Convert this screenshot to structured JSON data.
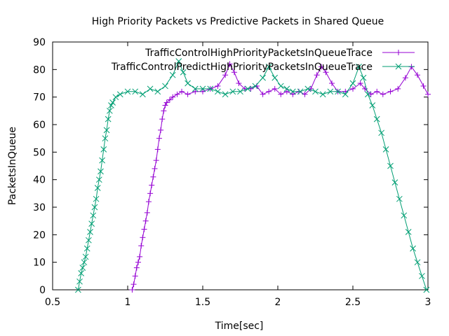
{
  "chart_data": {
    "type": "line",
    "title": "High Priority Packets vs Predictive Packets in Shared Queue",
    "xlabel": "Time[sec]",
    "ylabel": "PacketsInQueue",
    "xlim": [
      0.5,
      3
    ],
    "ylim": [
      0,
      90
    ],
    "xticks": [
      "0.5",
      "1",
      "1.5",
      "2",
      "2.5",
      "3"
    ],
    "yticks": [
      "0",
      "10",
      "20",
      "30",
      "40",
      "50",
      "60",
      "70",
      "80",
      "90"
    ],
    "legend_position": "top-right",
    "series": [
      {
        "name": "TrafficControlHighPriorityPacketsInQueueTrace",
        "color": "#9400D3",
        "marker": "plus",
        "points": [
          [
            1.03,
            0
          ],
          [
            1.04,
            2
          ],
          [
            1.05,
            5
          ],
          [
            1.06,
            8
          ],
          [
            1.07,
            10
          ],
          [
            1.08,
            12
          ],
          [
            1.09,
            16
          ],
          [
            1.1,
            19
          ],
          [
            1.11,
            22
          ],
          [
            1.12,
            25
          ],
          [
            1.13,
            28
          ],
          [
            1.14,
            32
          ],
          [
            1.15,
            35
          ],
          [
            1.16,
            38
          ],
          [
            1.17,
            41
          ],
          [
            1.18,
            44
          ],
          [
            1.19,
            47
          ],
          [
            1.2,
            51
          ],
          [
            1.21,
            55
          ],
          [
            1.22,
            58
          ],
          [
            1.23,
            62
          ],
          [
            1.24,
            65
          ],
          [
            1.25,
            67
          ],
          [
            1.26,
            68
          ],
          [
            1.28,
            69
          ],
          [
            1.3,
            70
          ],
          [
            1.33,
            71
          ],
          [
            1.36,
            72
          ],
          [
            1.4,
            71
          ],
          [
            1.45,
            72
          ],
          [
            1.5,
            72
          ],
          [
            1.55,
            73
          ],
          [
            1.6,
            74
          ],
          [
            1.65,
            78
          ],
          [
            1.68,
            82
          ],
          [
            1.71,
            79
          ],
          [
            1.74,
            75
          ],
          [
            1.78,
            73
          ],
          [
            1.82,
            73
          ],
          [
            1.86,
            74
          ],
          [
            1.9,
            71
          ],
          [
            1.94,
            72
          ],
          [
            1.98,
            73
          ],
          [
            2.02,
            71
          ],
          [
            2.06,
            72
          ],
          [
            2.1,
            71
          ],
          [
            2.14,
            72
          ],
          [
            2.18,
            71
          ],
          [
            2.22,
            73
          ],
          [
            2.26,
            78
          ],
          [
            2.29,
            81
          ],
          [
            2.32,
            79
          ],
          [
            2.36,
            75
          ],
          [
            2.4,
            72
          ],
          [
            2.45,
            72
          ],
          [
            2.5,
            73
          ],
          [
            2.55,
            75
          ],
          [
            2.58,
            73
          ],
          [
            2.62,
            71
          ],
          [
            2.66,
            72
          ],
          [
            2.7,
            71
          ],
          [
            2.75,
            72
          ],
          [
            2.8,
            73
          ],
          [
            2.85,
            77
          ],
          [
            2.89,
            81
          ],
          [
            2.93,
            78
          ],
          [
            2.97,
            74
          ],
          [
            3.0,
            71
          ]
        ]
      },
      {
        "name": "TrafficControlPredictHighPriorityPacketsInQueueTrace",
        "color": "#009E73",
        "marker": "cross",
        "points": [
          [
            0.67,
            0
          ],
          [
            0.68,
            3
          ],
          [
            0.69,
            6
          ],
          [
            0.7,
            8
          ],
          [
            0.71,
            10
          ],
          [
            0.72,
            12
          ],
          [
            0.73,
            15
          ],
          [
            0.74,
            18
          ],
          [
            0.75,
            21
          ],
          [
            0.76,
            24
          ],
          [
            0.77,
            27
          ],
          [
            0.78,
            30
          ],
          [
            0.79,
            33
          ],
          [
            0.8,
            37
          ],
          [
            0.81,
            40
          ],
          [
            0.82,
            43
          ],
          [
            0.83,
            47
          ],
          [
            0.84,
            51
          ],
          [
            0.85,
            55
          ],
          [
            0.86,
            58
          ],
          [
            0.87,
            62
          ],
          [
            0.88,
            65
          ],
          [
            0.89,
            67
          ],
          [
            0.9,
            68
          ],
          [
            0.92,
            70
          ],
          [
            0.95,
            71
          ],
          [
            1.0,
            72
          ],
          [
            1.05,
            72
          ],
          [
            1.1,
            71
          ],
          [
            1.15,
            73
          ],
          [
            1.2,
            72
          ],
          [
            1.25,
            74
          ],
          [
            1.3,
            78
          ],
          [
            1.34,
            83
          ],
          [
            1.37,
            79
          ],
          [
            1.4,
            75
          ],
          [
            1.45,
            73
          ],
          [
            1.5,
            73
          ],
          [
            1.55,
            73
          ],
          [
            1.6,
            72
          ],
          [
            1.65,
            71
          ],
          [
            1.7,
            72
          ],
          [
            1.75,
            72
          ],
          [
            1.8,
            73
          ],
          [
            1.85,
            74
          ],
          [
            1.9,
            77
          ],
          [
            1.94,
            81
          ],
          [
            1.98,
            77
          ],
          [
            2.02,
            74
          ],
          [
            2.06,
            73
          ],
          [
            2.1,
            72
          ],
          [
            2.15,
            72
          ],
          [
            2.2,
            73
          ],
          [
            2.25,
            72
          ],
          [
            2.3,
            71
          ],
          [
            2.35,
            72
          ],
          [
            2.4,
            72
          ],
          [
            2.45,
            71
          ],
          [
            2.5,
            75
          ],
          [
            2.54,
            81
          ],
          [
            2.57,
            77
          ],
          [
            2.6,
            71
          ],
          [
            2.63,
            67
          ],
          [
            2.66,
            62
          ],
          [
            2.69,
            57
          ],
          [
            2.72,
            51
          ],
          [
            2.75,
            45
          ],
          [
            2.78,
            39
          ],
          [
            2.81,
            33
          ],
          [
            2.84,
            27
          ],
          [
            2.87,
            21
          ],
          [
            2.9,
            15
          ],
          [
            2.93,
            10
          ],
          [
            2.96,
            5
          ],
          [
            2.99,
            0
          ]
        ]
      }
    ]
  }
}
